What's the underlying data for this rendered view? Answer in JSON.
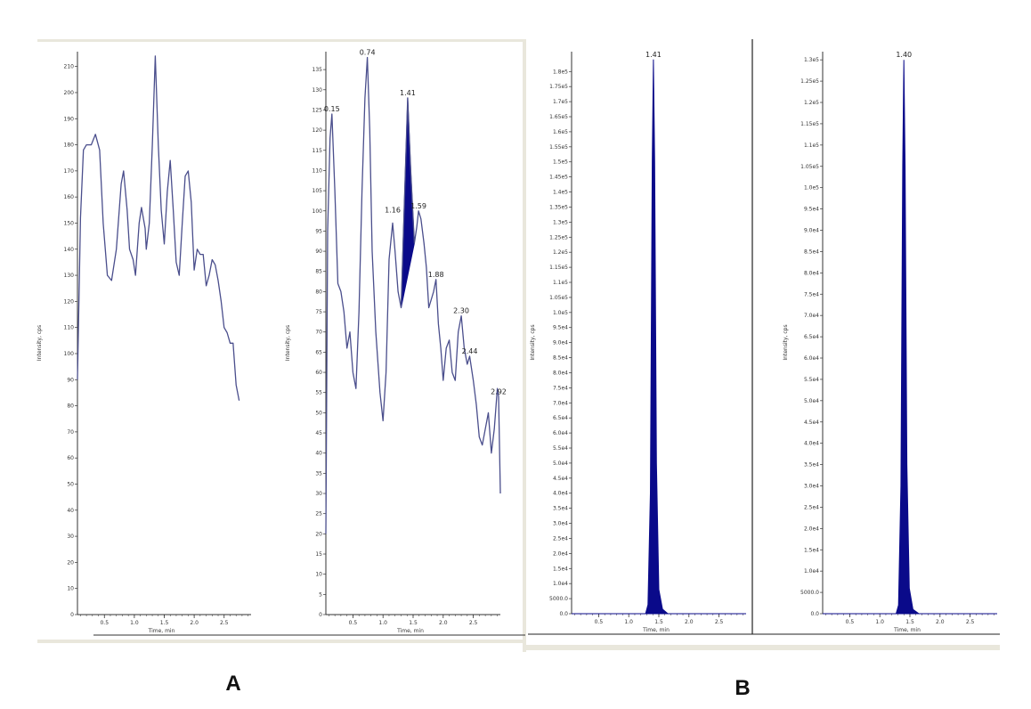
{
  "panel_labels": [
    "A",
    "B"
  ],
  "colors": {
    "trace": "#4a4e8c",
    "fill": "#0a0a8a",
    "axis": "#333333",
    "frame_bg": "#e9e7dc"
  },
  "chart_data": [
    {
      "type": "line",
      "panel": "A",
      "xlabel": "Time, min",
      "ylabel": "Intensity, cps",
      "xlim": [
        0.05,
        2.95
      ],
      "ylim": [
        0,
        215
      ],
      "x_ticks": [
        0.5,
        1.0,
        1.5,
        2.0,
        2.5
      ],
      "x_tick_labels": [
        "0.5",
        "1.0",
        "1.5",
        "2.0",
        "2.5"
      ],
      "y_ticks": [
        0,
        10,
        20,
        30,
        40,
        50,
        60,
        70,
        80,
        90,
        100,
        110,
        120,
        130,
        140,
        150,
        160,
        170,
        180,
        190,
        200,
        210
      ],
      "y_tick_labels": [
        "0",
        "10",
        "20",
        "30",
        "40",
        "50",
        "60",
        "70",
        "80",
        "90",
        "100",
        "110",
        "120",
        "130",
        "140",
        "150",
        "160",
        "170",
        "180",
        "190",
        "200",
        "210"
      ],
      "peak_labels": [],
      "series": [
        {
          "values": [
            [
              0.05,
              90
            ],
            [
              0.1,
              152
            ],
            [
              0.15,
              178
            ],
            [
              0.2,
              180
            ],
            [
              0.28,
              180
            ],
            [
              0.35,
              184
            ],
            [
              0.42,
              178
            ],
            [
              0.48,
              150
            ],
            [
              0.55,
              130
            ],
            [
              0.62,
              128
            ],
            [
              0.7,
              140
            ],
            [
              0.78,
              165
            ],
            [
              0.82,
              170
            ],
            [
              0.88,
              155
            ],
            [
              0.92,
              140
            ],
            [
              0.98,
              136
            ],
            [
              1.02,
              130
            ],
            [
              1.08,
              150
            ],
            [
              1.12,
              156
            ],
            [
              1.18,
              148
            ],
            [
              1.2,
              140
            ],
            [
              1.25,
              150
            ],
            [
              1.3,
              180
            ],
            [
              1.35,
              214
            ],
            [
              1.4,
              180
            ],
            [
              1.45,
              155
            ],
            [
              1.5,
              142
            ],
            [
              1.55,
              162
            ],
            [
              1.6,
              174
            ],
            [
              1.65,
              155
            ],
            [
              1.7,
              135
            ],
            [
              1.75,
              130
            ],
            [
              1.8,
              150
            ],
            [
              1.85,
              168
            ],
            [
              1.9,
              170
            ],
            [
              1.95,
              158
            ],
            [
              2.0,
              132
            ],
            [
              2.05,
              140
            ],
            [
              2.1,
              138
            ],
            [
              2.15,
              138
            ],
            [
              2.2,
              126
            ],
            [
              2.25,
              130
            ],
            [
              2.3,
              136
            ],
            [
              2.35,
              134
            ],
            [
              2.4,
              128
            ],
            [
              2.45,
              120
            ],
            [
              2.5,
              110
            ],
            [
              2.55,
              108
            ],
            [
              2.6,
              104
            ],
            [
              2.65,
              104
            ],
            [
              2.7,
              88
            ],
            [
              2.75,
              82
            ]
          ]
        }
      ]
    },
    {
      "type": "line",
      "panel": "A",
      "xlabel": "Time, min",
      "ylabel": "Intensity, cps",
      "xlim": [
        0.05,
        2.95
      ],
      "ylim": [
        0,
        139
      ],
      "x_ticks": [
        0.5,
        1.0,
        1.5,
        2.0,
        2.5
      ],
      "x_tick_labels": [
        "0.5",
        "1.0",
        "1.5",
        "2.0",
        "2.5"
      ],
      "y_ticks": [
        0,
        5,
        10,
        15,
        20,
        25,
        30,
        35,
        40,
        45,
        50,
        55,
        60,
        65,
        70,
        75,
        80,
        85,
        90,
        95,
        100,
        105,
        110,
        115,
        120,
        125,
        130,
        135
      ],
      "y_tick_labels": [
        "0",
        "5",
        "10",
        "15",
        "20",
        "25",
        "30",
        "35",
        "40",
        "45",
        "50",
        "55",
        "60",
        "65",
        "70",
        "75",
        "80",
        "85",
        "90",
        "95",
        "100",
        "105",
        "110",
        "115",
        "120",
        "125",
        "130",
        "135"
      ],
      "peak_labels": [
        {
          "x": 0.15,
          "y": 124,
          "text": "0.15"
        },
        {
          "x": 0.74,
          "y": 138,
          "text": "0.74"
        },
        {
          "x": 1.41,
          "y": 128,
          "text": "1.41"
        },
        {
          "x": 1.16,
          "y": 99,
          "text": "1.16"
        },
        {
          "x": 1.59,
          "y": 100,
          "text": "1.59"
        },
        {
          "x": 1.88,
          "y": 83,
          "text": "1.88"
        },
        {
          "x": 2.3,
          "y": 74,
          "text": "2.30"
        },
        {
          "x": 2.44,
          "y": 64,
          "text": "2.44"
        },
        {
          "x": 2.92,
          "y": 54,
          "text": "2.92"
        }
      ],
      "filled_peak": {
        "x_start": 1.3,
        "x_end": 1.54
      },
      "series": [
        {
          "values": [
            [
              0.05,
              20
            ],
            [
              0.08,
              95
            ],
            [
              0.12,
              118
            ],
            [
              0.15,
              124
            ],
            [
              0.2,
              105
            ],
            [
              0.25,
              82
            ],
            [
              0.3,
              80
            ],
            [
              0.35,
              75
            ],
            [
              0.4,
              66
            ],
            [
              0.45,
              70
            ],
            [
              0.5,
              60
            ],
            [
              0.55,
              56
            ],
            [
              0.6,
              75
            ],
            [
              0.65,
              105
            ],
            [
              0.7,
              128
            ],
            [
              0.74,
              138
            ],
            [
              0.78,
              120
            ],
            [
              0.82,
              90
            ],
            [
              0.88,
              70
            ],
            [
              0.95,
              55
            ],
            [
              1.0,
              48
            ],
            [
              1.05,
              60
            ],
            [
              1.1,
              88
            ],
            [
              1.16,
              97
            ],
            [
              1.2,
              90
            ],
            [
              1.25,
              80
            ],
            [
              1.3,
              76
            ],
            [
              1.35,
              100
            ],
            [
              1.41,
              128
            ],
            [
              1.46,
              110
            ],
            [
              1.52,
              92
            ],
            [
              1.56,
              96
            ],
            [
              1.59,
              100
            ],
            [
              1.63,
              98
            ],
            [
              1.68,
              92
            ],
            [
              1.72,
              86
            ],
            [
              1.76,
              76
            ],
            [
              1.8,
              78
            ],
            [
              1.84,
              80
            ],
            [
              1.88,
              83
            ],
            [
              1.92,
              72
            ],
            [
              1.96,
              66
            ],
            [
              2.0,
              58
            ],
            [
              2.05,
              66
            ],
            [
              2.1,
              68
            ],
            [
              2.15,
              60
            ],
            [
              2.2,
              58
            ],
            [
              2.25,
              70
            ],
            [
              2.3,
              74
            ],
            [
              2.35,
              66
            ],
            [
              2.4,
              62
            ],
            [
              2.44,
              64
            ],
            [
              2.5,
              58
            ],
            [
              2.55,
              52
            ],
            [
              2.6,
              44
            ],
            [
              2.65,
              42
            ],
            [
              2.7,
              46
            ],
            [
              2.75,
              50
            ],
            [
              2.8,
              40
            ],
            [
              2.85,
              46
            ],
            [
              2.9,
              56
            ],
            [
              2.92,
              54
            ],
            [
              2.95,
              30
            ]
          ]
        }
      ]
    },
    {
      "type": "area",
      "panel": "B",
      "xlabel": "Time, min",
      "ylabel": "Intensity, cps",
      "xlim": [
        0.05,
        2.95
      ],
      "ylim": [
        0,
        186000
      ],
      "x_ticks": [
        0.5,
        1.0,
        1.5,
        2.0,
        2.5
      ],
      "x_tick_labels": [
        "0.5",
        "1.0",
        "1.5",
        "2.0",
        "2.5"
      ],
      "y_ticks": [
        0,
        5000,
        10000,
        15000,
        20000,
        25000,
        30000,
        35000,
        40000,
        45000,
        50000,
        55000,
        60000,
        65000,
        70000,
        75000,
        80000,
        85000,
        90000,
        95000,
        100000,
        105000,
        110000,
        115000,
        120000,
        125000,
        130000,
        135000,
        140000,
        145000,
        150000,
        155000,
        160000,
        165000,
        170000,
        175000,
        180000
      ],
      "y_tick_labels": [
        "0.0",
        "5000.0",
        "1.0e4",
        "1.5e4",
        "2.0e4",
        "2.5e4",
        "3.0e4",
        "3.5e4",
        "4.0e4",
        "4.5e4",
        "5.0e4",
        "5.5e4",
        "6.0e4",
        "6.5e4",
        "7.0e4",
        "7.5e4",
        "8.0e4",
        "8.5e4",
        "9.0e4",
        "9.5e4",
        "1.0e5",
        "1.05e5",
        "1.1e5",
        "1.15e5",
        "1.2e5",
        "1.25e5",
        "1.3e5",
        "1.35e5",
        "1.4e5",
        "1.45e5",
        "1.5e5",
        "1.55e5",
        "1.6e5",
        "1.65e5",
        "1.7e5",
        "1.75e5",
        "1.8e5"
      ],
      "peak_labels": [
        {
          "x": 1.41,
          "y": 184000,
          "text": "1.41"
        }
      ],
      "series": [
        {
          "values": [
            [
              0.05,
              0
            ],
            [
              1.28,
              0
            ],
            [
              1.32,
              3000
            ],
            [
              1.36,
              40000
            ],
            [
              1.39,
              150000
            ],
            [
              1.41,
              184000
            ],
            [
              1.43,
              150000
            ],
            [
              1.46,
              50000
            ],
            [
              1.5,
              8000
            ],
            [
              1.56,
              1500
            ],
            [
              1.65,
              0
            ],
            [
              2.95,
              0
            ]
          ]
        }
      ]
    },
    {
      "type": "area",
      "panel": "B",
      "xlabel": "Time, min",
      "ylabel": "Intensity, cps",
      "xlim": [
        0.05,
        2.95
      ],
      "ylim": [
        0,
        131500
      ],
      "x_ticks": [
        0.5,
        1.0,
        1.5,
        2.0,
        2.5
      ],
      "x_tick_labels": [
        "0.5",
        "1.0",
        "1.5",
        "2.0",
        "2.5"
      ],
      "y_ticks": [
        0,
        5000,
        10000,
        15000,
        20000,
        25000,
        30000,
        35000,
        40000,
        45000,
        50000,
        55000,
        60000,
        65000,
        70000,
        75000,
        80000,
        85000,
        90000,
        95000,
        100000,
        105000,
        110000,
        115000,
        120000,
        125000,
        130000
      ],
      "y_tick_labels": [
        "0.0",
        "5000.0",
        "1.0e4",
        "1.5e4",
        "2.0e4",
        "2.5e4",
        "3.0e4",
        "3.5e4",
        "4.0e4",
        "4.5e4",
        "5.0e4",
        "5.5e4",
        "6.0e4",
        "6.5e4",
        "7.0e4",
        "7.5e4",
        "8.0e4",
        "8.5e4",
        "9.0e4",
        "9.5e4",
        "1.0e5",
        "1.05e5",
        "1.1e5",
        "1.15e5",
        "1.2e5",
        "1.25e5",
        "1.3e5"
      ],
      "peak_labels": [
        {
          "x": 1.4,
          "y": 130000,
          "text": "1.40"
        }
      ],
      "series": [
        {
          "values": [
            [
              0.05,
              0
            ],
            [
              1.27,
              0
            ],
            [
              1.31,
              2000
            ],
            [
              1.35,
              30000
            ],
            [
              1.38,
              105000
            ],
            [
              1.4,
              130000
            ],
            [
              1.42,
              105000
            ],
            [
              1.45,
              35000
            ],
            [
              1.49,
              6000
            ],
            [
              1.55,
              1000
            ],
            [
              1.65,
              0
            ],
            [
              2.95,
              0
            ]
          ]
        }
      ]
    }
  ]
}
